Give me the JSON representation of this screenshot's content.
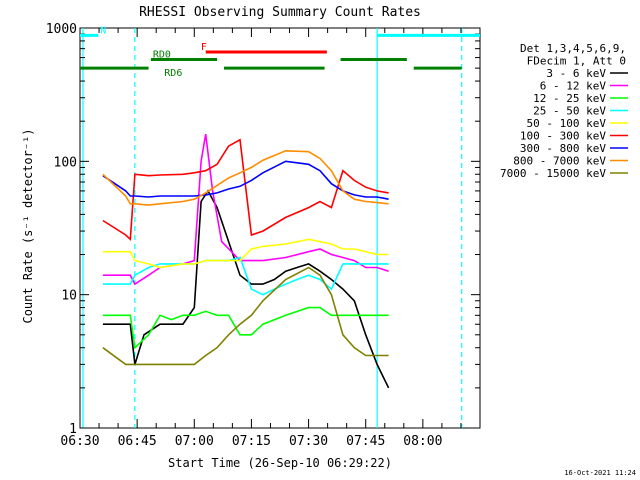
{
  "chart_data": {
    "type": "line",
    "title": "RHESSI Observing Summary Count Rates",
    "xlabel": "Start Time (26-Sep-10 06:29:22)",
    "ylabel": "Count Rate (s⁻¹ detector⁻¹)",
    "y_scale": "log",
    "ylim": [
      1,
      1000
    ],
    "xlim_minutes": [
      6.5,
      8.25
    ],
    "x_ticks": [
      {
        "t": 6.5,
        "label": "06:30"
      },
      {
        "t": 6.75,
        "label": "06:45"
      },
      {
        "t": 7.0,
        "label": "07:00"
      },
      {
        "t": 7.25,
        "label": "07:15"
      },
      {
        "t": 7.5,
        "label": "07:30"
      },
      {
        "t": 7.75,
        "label": "07:45"
      },
      {
        "t": 8.0,
        "label": "08:00"
      }
    ],
    "y_ticks": [
      {
        "v": 1,
        "label": "1"
      },
      {
        "v": 10,
        "label": "10"
      },
      {
        "v": 100,
        "label": "100"
      },
      {
        "v": 1000,
        "label": "1000"
      }
    ],
    "legend_header": [
      "Det 1,3,4,5,6,9,",
      "FDecim 1, Att 0"
    ],
    "legend_position": "right",
    "series": [
      {
        "name": "3 - 6 keV",
        "color": "#000000",
        "x": [
          6.6,
          6.72,
          6.74,
          6.78,
          6.85,
          6.95,
          7.0,
          7.03,
          7.06,
          7.1,
          7.15,
          7.2,
          7.25,
          7.3,
          7.35,
          7.4,
          7.45,
          7.5,
          7.55,
          7.6,
          7.65,
          7.7,
          7.75,
          7.8,
          7.85
        ],
        "y": [
          6,
          6,
          3,
          5,
          6,
          6,
          8,
          50,
          60,
          45,
          25,
          14,
          12,
          12,
          13,
          15,
          16,
          17,
          15,
          13,
          11,
          9,
          5,
          3,
          2
        ]
      },
      {
        "name": "6 - 12 keV",
        "color": "#ff00ff",
        "x": [
          6.6,
          6.72,
          6.74,
          6.8,
          6.85,
          6.95,
          7.0,
          7.03,
          7.05,
          7.08,
          7.12,
          7.2,
          7.25,
          7.3,
          7.4,
          7.5,
          7.55,
          7.6,
          7.65,
          7.7,
          7.75,
          7.8,
          7.85
        ],
        "y": [
          14,
          14,
          12,
          14,
          16,
          17,
          18,
          100,
          160,
          60,
          25,
          18,
          18,
          18,
          19,
          21,
          22,
          20,
          19,
          18,
          16,
          16,
          15
        ]
      },
      {
        "name": "12 - 25 keV",
        "color": "#00ff00",
        "x": [
          6.6,
          6.72,
          6.74,
          6.8,
          6.85,
          6.9,
          6.95,
          7.0,
          7.05,
          7.1,
          7.15,
          7.2,
          7.25,
          7.3,
          7.4,
          7.5,
          7.55,
          7.6,
          7.65,
          7.7,
          7.75,
          7.8,
          7.85
        ],
        "y": [
          7,
          7,
          4,
          5,
          7,
          6.5,
          7,
          7,
          7.5,
          7,
          7,
          5,
          5,
          6,
          7,
          8,
          8,
          7,
          7,
          7,
          7,
          7,
          7
        ]
      },
      {
        "name": "25 - 50 keV",
        "color": "#00ffff",
        "x": [
          6.6,
          6.72,
          6.74,
          6.8,
          6.85,
          6.95,
          7.0,
          7.05,
          7.1,
          7.15,
          7.2,
          7.25,
          7.3,
          7.35,
          7.4,
          7.45,
          7.5,
          7.55,
          7.6,
          7.65,
          7.7,
          7.75,
          7.8,
          7.85
        ],
        "y": [
          12,
          12,
          14,
          16,
          17,
          17,
          17,
          18,
          18,
          18,
          19,
          11,
          10,
          11,
          12,
          13,
          14,
          13,
          11,
          17,
          17,
          17,
          17,
          17
        ]
      },
      {
        "name": "50 - 100 keV",
        "color": "#ffff00",
        "x": [
          6.6,
          6.72,
          6.74,
          6.8,
          6.85,
          6.95,
          7.0,
          7.05,
          7.1,
          7.15,
          7.2,
          7.25,
          7.3,
          7.4,
          7.5,
          7.55,
          7.6,
          7.65,
          7.7,
          7.75,
          7.8,
          7.85
        ],
        "y": [
          21,
          21,
          18,
          17,
          16,
          17,
          17,
          18,
          18,
          18,
          18,
          22,
          23,
          24,
          26,
          25,
          24,
          22,
          22,
          21,
          20,
          20
        ]
      },
      {
        "name": "100 - 300 keV",
        "color": "#ff0000",
        "x": [
          6.6,
          6.7,
          6.72,
          6.74,
          6.8,
          6.85,
          6.95,
          7.0,
          7.05,
          7.1,
          7.15,
          7.2,
          7.25,
          7.3,
          7.4,
          7.5,
          7.55,
          7.6,
          7.65,
          7.7,
          7.75,
          7.8,
          7.85
        ],
        "y": [
          36,
          28,
          26,
          80,
          78,
          79,
          80,
          82,
          85,
          95,
          130,
          145,
          28,
          30,
          38,
          45,
          50,
          45,
          85,
          72,
          64,
          60,
          58
        ]
      },
      {
        "name": "300 - 800 keV",
        "color": "#0000ff",
        "x": [
          6.6,
          6.7,
          6.72,
          6.74,
          6.8,
          6.85,
          6.95,
          7.0,
          7.05,
          7.1,
          7.15,
          7.2,
          7.25,
          7.3,
          7.4,
          7.5,
          7.55,
          7.6,
          7.65,
          7.7,
          7.75,
          7.8,
          7.85
        ],
        "y": [
          78,
          60,
          55,
          55,
          54,
          55,
          55,
          55,
          56,
          58,
          62,
          65,
          72,
          82,
          100,
          95,
          85,
          68,
          60,
          56,
          54,
          54,
          52
        ]
      },
      {
        "name": "800 - 7000 keV",
        "color": "#ff8c00",
        "x": [
          6.6,
          6.7,
          6.72,
          6.74,
          6.8,
          6.85,
          6.95,
          7.0,
          7.05,
          7.1,
          7.15,
          7.2,
          7.25,
          7.3,
          7.4,
          7.5,
          7.55,
          7.6,
          7.65,
          7.7,
          7.75,
          7.8,
          7.85
        ],
        "y": [
          80,
          55,
          48,
          48,
          47,
          48,
          50,
          52,
          58,
          66,
          75,
          82,
          90,
          102,
          120,
          118,
          105,
          85,
          60,
          52,
          50,
          49,
          48
        ]
      },
      {
        "name": "7000 - 15000 keV",
        "color": "#808000",
        "x": [
          6.6,
          6.7,
          6.74,
          6.8,
          6.85,
          6.9,
          6.95,
          7.0,
          7.05,
          7.1,
          7.15,
          7.2,
          7.25,
          7.3,
          7.4,
          7.5,
          7.55,
          7.6,
          7.65,
          7.7,
          7.75,
          7.8,
          7.85
        ],
        "y": [
          4,
          3,
          3,
          3,
          3,
          3,
          3,
          3,
          3.5,
          4,
          5,
          6,
          7,
          9,
          13,
          16,
          14,
          10,
          5,
          4,
          3.5,
          3.5,
          3.5
        ]
      }
    ],
    "annotations": [
      {
        "label": "N",
        "color": "#00ffff",
        "segments": [
          [
            6.5,
            6.58
          ],
          [
            7.8,
            8.25
          ]
        ],
        "level": 880,
        "label_at": 6.58
      },
      {
        "label": "F",
        "color": "#ff0000",
        "segments": [
          [
            7.05,
            7.58
          ]
        ],
        "level": 660,
        "label_at": 7.02
      },
      {
        "label": "RD0",
        "color": "#008000",
        "segments": [
          [
            6.81,
            7.1
          ],
          [
            7.64,
            7.93
          ]
        ],
        "level": 580,
        "label_at": 6.81
      },
      {
        "label": "RD6",
        "color": "#008000",
        "segments": [
          [
            6.5,
            6.8
          ],
          [
            7.13,
            7.57
          ],
          [
            7.96,
            8.17
          ]
        ],
        "level": 500,
        "label_at": 6.86
      }
    ],
    "vertical_markers": [
      {
        "t": 6.513,
        "color": "#00ffff",
        "style": "solid"
      },
      {
        "t": 6.74,
        "color": "#00ffff",
        "style": "dashed"
      },
      {
        "t": 7.8,
        "color": "#00ffff",
        "style": "solid"
      },
      {
        "t": 8.17,
        "color": "#00ffff",
        "style": "dashed"
      }
    ]
  },
  "footer_timestamp": "16-Oct-2021 11:24"
}
